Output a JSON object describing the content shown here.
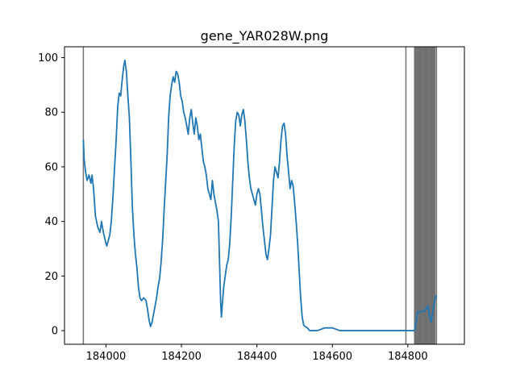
{
  "chart_data": {
    "type": "line",
    "title": "gene_YAR028W.png",
    "xlabel": "",
    "ylabel": "",
    "xlim": [
      183890,
      184950
    ],
    "ylim": [
      -5,
      104
    ],
    "xticks": [
      184000,
      184200,
      184400,
      184600,
      184800
    ],
    "yticks": [
      0,
      20,
      40,
      60,
      80,
      100
    ],
    "grid": false,
    "series": [
      {
        "color": "#1f77b4",
        "points": [
          [
            183940,
            70
          ],
          [
            183942,
            63
          ],
          [
            183946,
            58
          ],
          [
            183950,
            55
          ],
          [
            183955,
            57
          ],
          [
            183960,
            54
          ],
          [
            183963,
            57
          ],
          [
            183967,
            52
          ],
          [
            183972,
            42
          ],
          [
            183978,
            38
          ],
          [
            183984,
            36
          ],
          [
            183988,
            40
          ],
          [
            183993,
            36
          ],
          [
            183998,
            33
          ],
          [
            184002,
            31
          ],
          [
            184006,
            33
          ],
          [
            184010,
            35
          ],
          [
            184014,
            40
          ],
          [
            184018,
            48
          ],
          [
            184022,
            58
          ],
          [
            184027,
            70
          ],
          [
            184031,
            82
          ],
          [
            184035,
            87
          ],
          [
            184039,
            86
          ],
          [
            184043,
            92
          ],
          [
            184047,
            97
          ],
          [
            184050,
            99
          ],
          [
            184054,
            95
          ],
          [
            184058,
            86
          ],
          [
            184062,
            78
          ],
          [
            184066,
            62
          ],
          [
            184070,
            45
          ],
          [
            184074,
            35
          ],
          [
            184078,
            28
          ],
          [
            184082,
            23
          ],
          [
            184086,
            16
          ],
          [
            184090,
            12
          ],
          [
            184094,
            11
          ],
          [
            184100,
            12
          ],
          [
            184106,
            11
          ],
          [
            184110,
            8
          ],
          [
            184114,
            4
          ],
          [
            184118,
            1.5
          ],
          [
            184122,
            3
          ],
          [
            184126,
            6
          ],
          [
            184130,
            9
          ],
          [
            184134,
            12
          ],
          [
            184138,
            16
          ],
          [
            184142,
            19
          ],
          [
            184146,
            25
          ],
          [
            184150,
            33
          ],
          [
            184154,
            44
          ],
          [
            184158,
            54
          ],
          [
            184162,
            64
          ],
          [
            184166,
            78
          ],
          [
            184170,
            86
          ],
          [
            184174,
            90
          ],
          [
            184178,
            93
          ],
          [
            184182,
            91
          ],
          [
            184186,
            95
          ],
          [
            184190,
            94
          ],
          [
            184194,
            91
          ],
          [
            184198,
            86
          ],
          [
            184202,
            84
          ],
          [
            184206,
            80
          ],
          [
            184210,
            78
          ],
          [
            184214,
            75
          ],
          [
            184218,
            72
          ],
          [
            184222,
            78
          ],
          [
            184226,
            81
          ],
          [
            184230,
            76
          ],
          [
            184234,
            72
          ],
          [
            184238,
            78
          ],
          [
            184242,
            75
          ],
          [
            184246,
            70
          ],
          [
            184250,
            72
          ],
          [
            184254,
            67
          ],
          [
            184258,
            62
          ],
          [
            184262,
            60
          ],
          [
            184266,
            57
          ],
          [
            184270,
            52
          ],
          [
            184274,
            50
          ],
          [
            184278,
            48
          ],
          [
            184282,
            55
          ],
          [
            184286,
            50
          ],
          [
            184290,
            47
          ],
          [
            184294,
            44
          ],
          [
            184298,
            40
          ],
          [
            184300,
            30
          ],
          [
            184302,
            20
          ],
          [
            184304,
            10
          ],
          [
            184306,
            5
          ],
          [
            184308,
            9
          ],
          [
            184312,
            16
          ],
          [
            184316,
            20
          ],
          [
            184320,
            24
          ],
          [
            184324,
            26
          ],
          [
            184328,
            32
          ],
          [
            184332,
            42
          ],
          [
            184336,
            55
          ],
          [
            184340,
            68
          ],
          [
            184344,
            77
          ],
          [
            184348,
            80
          ],
          [
            184352,
            79
          ],
          [
            184356,
            75
          ],
          [
            184360,
            79
          ],
          [
            184364,
            81
          ],
          [
            184368,
            77
          ],
          [
            184372,
            70
          ],
          [
            184376,
            62
          ],
          [
            184380,
            56
          ],
          [
            184384,
            52
          ],
          [
            184388,
            50
          ],
          [
            184392,
            48
          ],
          [
            184396,
            46
          ],
          [
            184400,
            50
          ],
          [
            184404,
            52
          ],
          [
            184408,
            50
          ],
          [
            184412,
            44
          ],
          [
            184416,
            38
          ],
          [
            184420,
            33
          ],
          [
            184424,
            28
          ],
          [
            184428,
            26
          ],
          [
            184432,
            30
          ],
          [
            184436,
            35
          ],
          [
            184440,
            45
          ],
          [
            184444,
            55
          ],
          [
            184448,
            60
          ],
          [
            184452,
            58
          ],
          [
            184456,
            56
          ],
          [
            184460,
            62
          ],
          [
            184464,
            70
          ],
          [
            184468,
            75
          ],
          [
            184472,
            76
          ],
          [
            184476,
            72
          ],
          [
            184480,
            64
          ],
          [
            184484,
            58
          ],
          [
            184488,
            52
          ],
          [
            184492,
            55
          ],
          [
            184496,
            53
          ],
          [
            184500,
            47
          ],
          [
            184504,
            40
          ],
          [
            184508,
            32
          ],
          [
            184512,
            22
          ],
          [
            184516,
            12
          ],
          [
            184520,
            5
          ],
          [
            184524,
            2
          ],
          [
            184528,
            1.5
          ],
          [
            184534,
            1
          ],
          [
            184540,
            0
          ],
          [
            184560,
            0
          ],
          [
            184580,
            1
          ],
          [
            184600,
            1
          ],
          [
            184620,
            0
          ],
          [
            184650,
            0
          ],
          [
            184700,
            0
          ],
          [
            184750,
            0
          ],
          [
            184800,
            0
          ],
          [
            184818,
            0
          ],
          [
            184822,
            3
          ],
          [
            184826,
            7
          ],
          [
            184834,
            7
          ],
          [
            184842,
            7
          ],
          [
            184848,
            8
          ],
          [
            184854,
            9
          ],
          [
            184858,
            5
          ],
          [
            184862,
            3
          ],
          [
            184866,
            7
          ],
          [
            184870,
            10
          ],
          [
            184873,
            12
          ],
          [
            184876,
            13
          ]
        ]
      }
    ],
    "vlines": [
      183940,
      184795,
      184818,
      184821,
      184824,
      184827,
      184830,
      184833,
      184836,
      184839,
      184842,
      184845,
      184848,
      184851,
      184854,
      184857,
      184860,
      184863,
      184866,
      184869,
      184872,
      184876
    ],
    "vline_color": "#000000"
  }
}
